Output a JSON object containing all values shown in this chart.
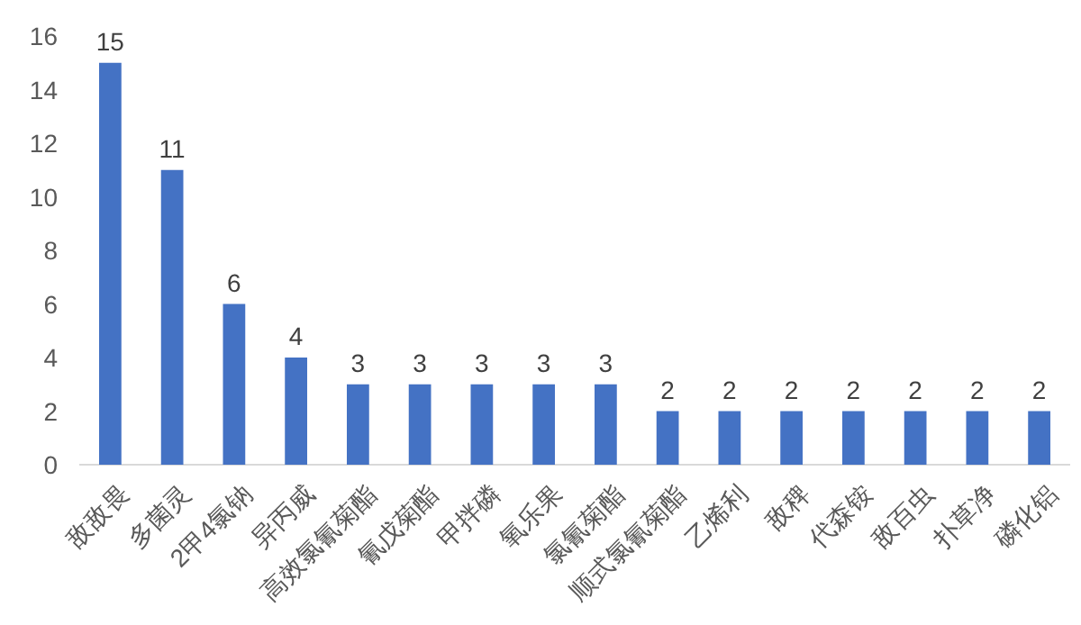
{
  "chart_data": {
    "type": "bar",
    "categories": [
      "敌敌畏",
      "多菌灵",
      "2甲4氯钠",
      "异丙威",
      "高效氯氰菊酯",
      "氰戊菊酯",
      "甲拌磷",
      "氧乐果",
      "氯氰菊酯",
      "顺式氯氰菊酯",
      "乙烯利",
      "敌稗",
      "代森铵",
      "敌百虫",
      "扑草净",
      "磷化铝"
    ],
    "values": [
      15,
      11,
      6,
      4,
      3,
      3,
      3,
      3,
      3,
      2,
      2,
      2,
      2,
      2,
      2,
      2
    ],
    "color": "#4472c4",
    "ylim": [
      0,
      16
    ],
    "yticks": [
      0,
      2,
      4,
      6,
      8,
      10,
      12,
      14,
      16
    ],
    "data_labels": true
  }
}
